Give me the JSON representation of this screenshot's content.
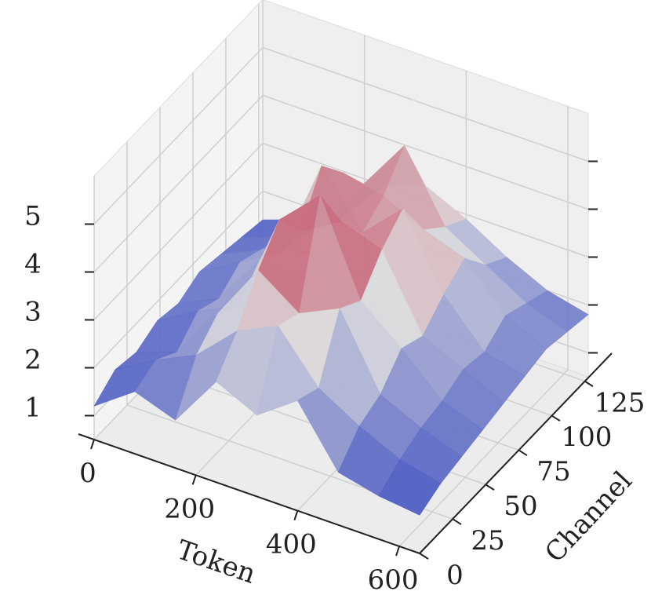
{
  "chart_data": {
    "type": "surface",
    "colormap": "coolwarm",
    "xlabel": "Token",
    "ylabel": "Channel",
    "x": [
      0,
      80,
      160,
      240,
      320,
      400,
      480,
      560,
      640
    ],
    "y": [
      0,
      16,
      32,
      48,
      64,
      80,
      96,
      112,
      128
    ],
    "z": [
      [
        1.2,
        1.8,
        1.5,
        2.6,
        2.2,
        2.8,
        1.6,
        1.4,
        1.3
      ],
      [
        1.5,
        2.0,
        2.4,
        3.2,
        3.6,
        2.6,
        2.1,
        1.7,
        1.5
      ],
      [
        1.4,
        1.7,
        2.8,
        4.0,
        3.4,
        3.8,
        2.3,
        1.9,
        1.6
      ],
      [
        1.6,
        2.1,
        2.5,
        4.6,
        5.4,
        3.5,
        2.8,
        2.0,
        1.7
      ],
      [
        1.5,
        1.9,
        3.0,
        3.9,
        4.4,
        4.1,
        2.6,
        2.2,
        1.8
      ],
      [
        1.7,
        2.2,
        2.7,
        4.8,
        3.7,
        4.5,
        3.0,
        2.1,
        1.9
      ],
      [
        1.6,
        2.0,
        2.6,
        4.2,
        4.0,
        3.6,
        3.3,
        2.4,
        2.0
      ],
      [
        1.5,
        1.8,
        2.3,
        3.5,
        4.6,
        3.2,
        2.7,
        2.2,
        1.9
      ],
      [
        1.4,
        1.7,
        2.1,
        3.0,
        3.3,
        2.9,
        2.4,
        2.0,
        1.8
      ]
    ],
    "xlim": [
      0,
      640
    ],
    "ylim": [
      0,
      128
    ],
    "zlim": [
      0.5,
      6
    ],
    "xticks": [
      0,
      200,
      400,
      600
    ],
    "yticks": [
      0,
      25,
      50,
      75,
      100,
      125
    ],
    "zticks": [
      1,
      2,
      3,
      4,
      5
    ],
    "grid": true
  }
}
